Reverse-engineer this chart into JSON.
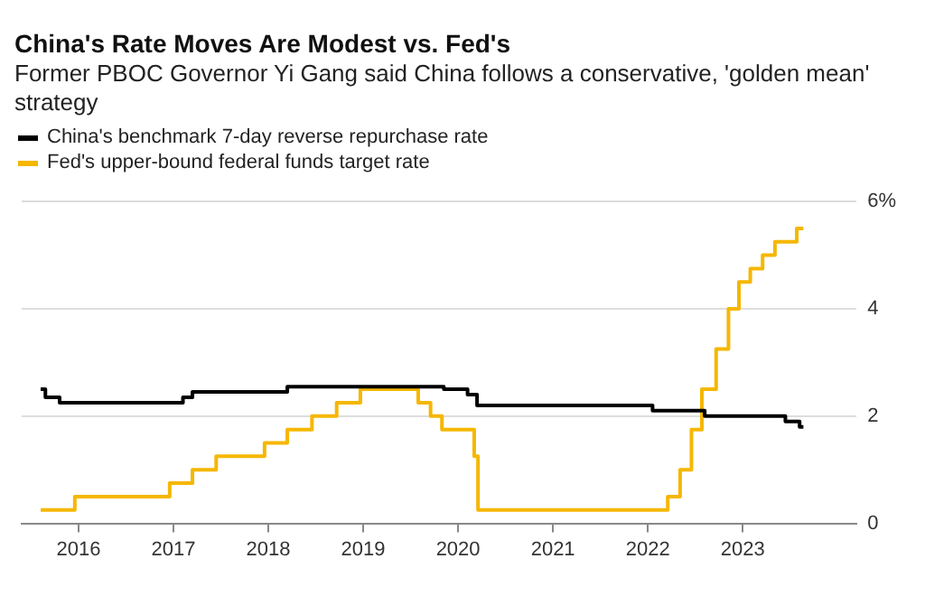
{
  "chart_data": {
    "type": "step",
    "title": "China's Rate Moves Are Modest vs. Fed's",
    "subtitle": "Former PBOC Governor Yi Gang said China follows a conservative, 'golden mean' strategy",
    "xlim": [
      2015.4,
      2024.2
    ],
    "xticks": [
      2016,
      2017,
      2018,
      2019,
      2020,
      2021,
      2022,
      2023
    ],
    "ylim": [
      0,
      6
    ],
    "yticks": [
      0,
      2,
      4,
      {
        "value": 6,
        "label": "6%"
      }
    ],
    "grid": "y",
    "legend": "top left",
    "series": [
      {
        "name": "China's benchmark 7-day reverse repurchase rate",
        "color": "#000000",
        "x": [
          2015.6,
          2015.65,
          2015.8,
          2017.1,
          2017.2,
          2018.2,
          2019.85,
          2020.1,
          2020.2,
          2022.05,
          2022.6,
          2023.45,
          2023.6,
          2023.64
        ],
        "values": [
          2.5,
          2.35,
          2.25,
          2.35,
          2.45,
          2.55,
          2.5,
          2.4,
          2.2,
          2.1,
          2.0,
          1.9,
          1.8,
          1.8
        ]
      },
      {
        "name": "Fed's upper-bound federal funds target rate",
        "color": "#f5b700",
        "x": [
          2015.6,
          2015.96,
          2016.96,
          2017.2,
          2017.45,
          2017.96,
          2018.2,
          2018.46,
          2018.72,
          2018.97,
          2019.58,
          2019.71,
          2019.83,
          2020.17,
          2020.21,
          2022.21,
          2022.34,
          2022.46,
          2022.57,
          2022.72,
          2022.85,
          2022.96,
          2023.08,
          2023.21,
          2023.34,
          2023.57,
          2023.64
        ],
        "values": [
          0.25,
          0.5,
          0.75,
          1.0,
          1.25,
          1.5,
          1.75,
          2.0,
          2.25,
          2.5,
          2.25,
          2.0,
          1.75,
          1.25,
          0.25,
          0.5,
          1.0,
          1.75,
          2.5,
          3.25,
          4.0,
          4.5,
          4.75,
          5.0,
          5.25,
          5.5,
          5.5
        ]
      }
    ]
  }
}
